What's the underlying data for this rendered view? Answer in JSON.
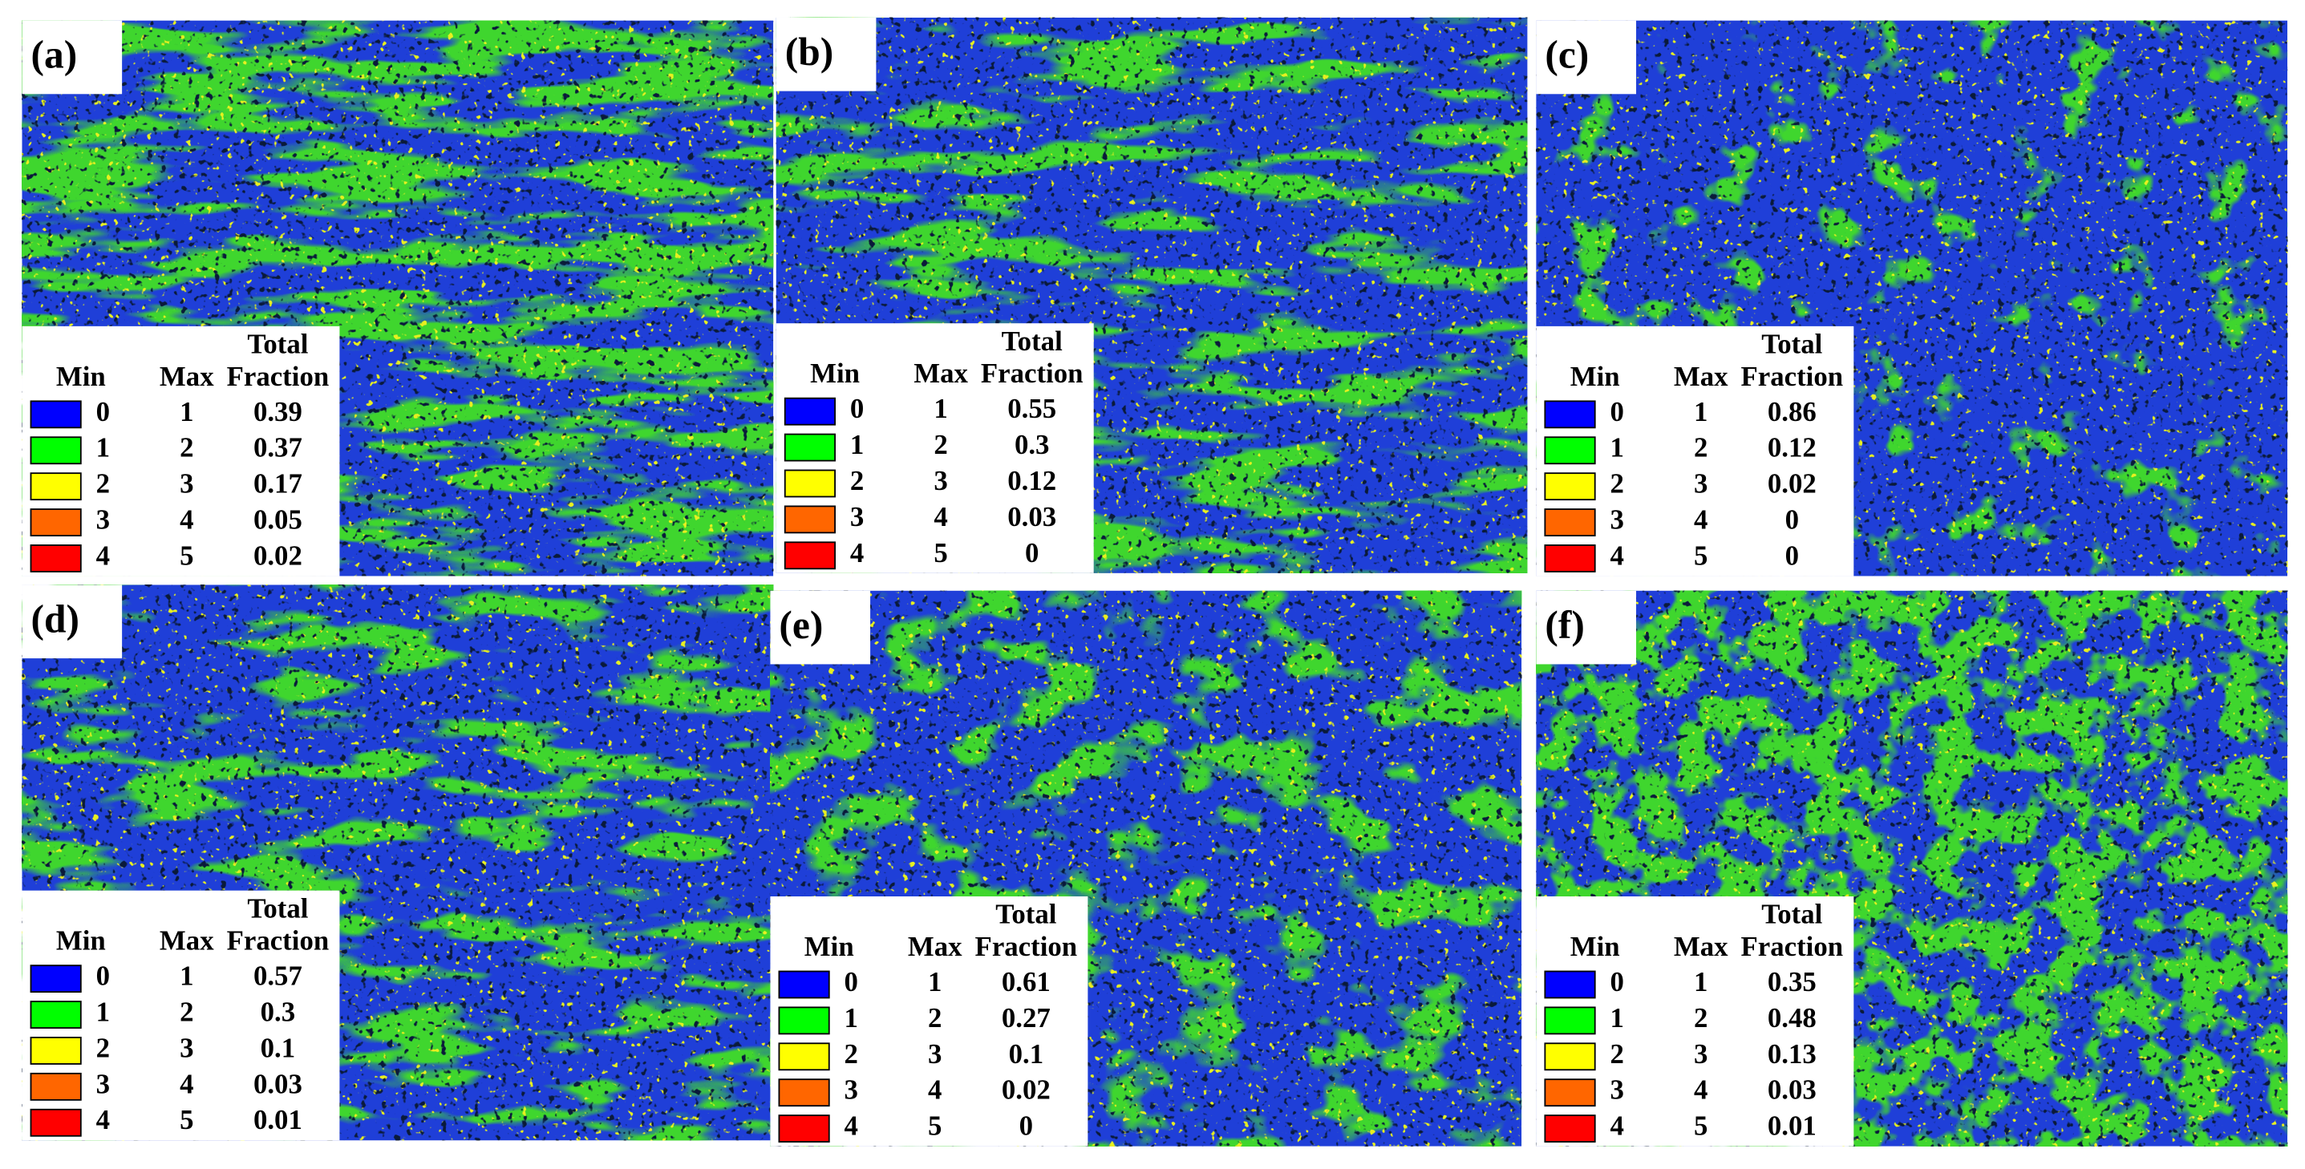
{
  "legend_header": {
    "total": "Total",
    "min": "Min",
    "max": "Max",
    "fraction": "Fraction"
  },
  "legend_colors": [
    "#0000ff",
    "#00ff00",
    "#ffff00",
    "#ff6600",
    "#ff0000"
  ],
  "panels": [
    {
      "label": "(a)",
      "rows": [
        {
          "min": 0,
          "max": 1,
          "fraction": 0.39
        },
        {
          "min": 1,
          "max": 2,
          "fraction": 0.37
        },
        {
          "min": 2,
          "max": 3,
          "fraction": 0.17
        },
        {
          "min": 3,
          "max": 4,
          "fraction": 0.05
        },
        {
          "min": 4,
          "max": 5,
          "fraction": 0.02
        }
      ]
    },
    {
      "label": "(b)",
      "rows": [
        {
          "min": 0,
          "max": 1,
          "fraction": 0.55
        },
        {
          "min": 1,
          "max": 2,
          "fraction": 0.3
        },
        {
          "min": 2,
          "max": 3,
          "fraction": 0.12
        },
        {
          "min": 3,
          "max": 4,
          "fraction": 0.03
        },
        {
          "min": 4,
          "max": 5,
          "fraction": 0
        }
      ]
    },
    {
      "label": "(c)",
      "rows": [
        {
          "min": 0,
          "max": 1,
          "fraction": 0.86
        },
        {
          "min": 1,
          "max": 2,
          "fraction": 0.12
        },
        {
          "min": 2,
          "max": 3,
          "fraction": 0.02
        },
        {
          "min": 3,
          "max": 4,
          "fraction": 0
        },
        {
          "min": 4,
          "max": 5,
          "fraction": 0
        }
      ]
    },
    {
      "label": "(d)",
      "rows": [
        {
          "min": 0,
          "max": 1,
          "fraction": 0.57
        },
        {
          "min": 1,
          "max": 2,
          "fraction": 0.3
        },
        {
          "min": 2,
          "max": 3,
          "fraction": 0.1
        },
        {
          "min": 3,
          "max": 4,
          "fraction": 0.03
        },
        {
          "min": 4,
          "max": 5,
          "fraction": 0.01
        }
      ]
    },
    {
      "label": "(e)",
      "rows": [
        {
          "min": 0,
          "max": 1,
          "fraction": 0.61
        },
        {
          "min": 1,
          "max": 2,
          "fraction": 0.27
        },
        {
          "min": 2,
          "max": 3,
          "fraction": 0.1
        },
        {
          "min": 3,
          "max": 4,
          "fraction": 0.02
        },
        {
          "min": 4,
          "max": 5,
          "fraction": 0
        }
      ]
    },
    {
      "label": "(f)",
      "rows": [
        {
          "min": 0,
          "max": 1,
          "fraction": 0.35
        },
        {
          "min": 1,
          "max": 2,
          "fraction": 0.48
        },
        {
          "min": 2,
          "max": 3,
          "fraction": 0.13
        },
        {
          "min": 3,
          "max": 4,
          "fraction": 0.03
        },
        {
          "min": 4,
          "max": 5,
          "fraction": 0.01
        }
      ]
    }
  ]
}
